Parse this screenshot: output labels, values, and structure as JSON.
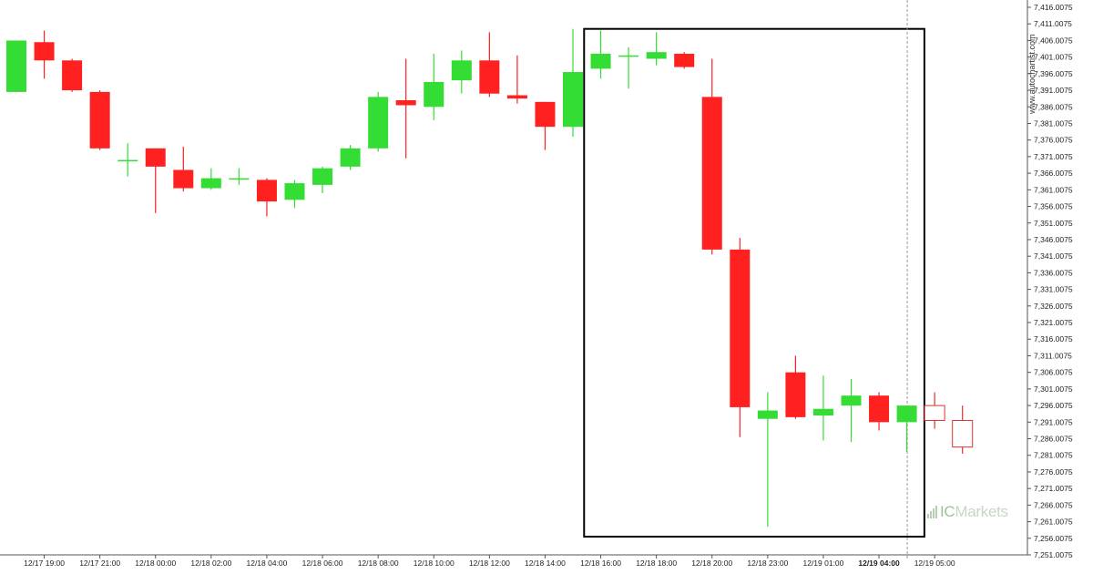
{
  "chart_data": {
    "type": "candlestick",
    "watermark": "www.autochartist.com",
    "brand": {
      "prefix": "IC",
      "name": "Markets"
    },
    "colors": {
      "up": "#33dd33",
      "down": "#ff2020",
      "projection": "#dd3333",
      "axis": "#555555",
      "box": "#000000",
      "grid_tick": "#999999"
    },
    "ylim": [
      7251.0075,
      7416.0075
    ],
    "y_ticks": [
      "7,416.0075",
      "7,411.0075",
      "7,406.0075",
      "7,401.0075",
      "7,396.0075",
      "7,391.0075",
      "7,386.0075",
      "7,381.0075",
      "7,376.0075",
      "7,371.0075",
      "7,366.0075",
      "7,361.0075",
      "7,356.0075",
      "7,351.0075",
      "7,346.0075",
      "7,341.0075",
      "7,336.0075",
      "7,331.0075",
      "7,326.0075",
      "7,321.0075",
      "7,316.0075",
      "7,311.0075",
      "7,306.0075",
      "7,301.0075",
      "7,296.0075",
      "7,291.0075",
      "7,286.0075",
      "7,281.0075",
      "7,276.0075",
      "7,271.0075",
      "7,266.0075",
      "7,261.0075",
      "7,256.0075",
      "7,251.0075"
    ],
    "x_ticks": [
      {
        "label": "12/17 19:00",
        "index": 1
      },
      {
        "label": "12/17 21:00",
        "index": 3
      },
      {
        "label": "12/18 00:00",
        "index": 5
      },
      {
        "label": "12/18 02:00",
        "index": 7
      },
      {
        "label": "12/18 04:00",
        "index": 9
      },
      {
        "label": "12/18 06:00",
        "index": 11
      },
      {
        "label": "12/18 08:00",
        "index": 13
      },
      {
        "label": "12/18 10:00",
        "index": 15
      },
      {
        "label": "12/18 12:00",
        "index": 17
      },
      {
        "label": "12/18 14:00",
        "index": 19
      },
      {
        "label": "12/18 16:00",
        "index": 21
      },
      {
        "label": "12/18 18:00",
        "index": 23
      },
      {
        "label": "12/18 20:00",
        "index": 25
      },
      {
        "label": "12/18 23:00",
        "index": 27
      },
      {
        "label": "12/19 01:00",
        "index": 29
      },
      {
        "label": "12/19 04:00",
        "index": 31,
        "bold": true
      },
      {
        "label": "12/19 05:00",
        "index": 33
      }
    ],
    "candles": [
      {
        "o": 7390.5,
        "h": 7406.0,
        "l": 7390.5,
        "c": 7406.0
      },
      {
        "o": 7405.5,
        "h": 7409.0,
        "l": 7394.5,
        "c": 7400.0
      },
      {
        "o": 7400.0,
        "h": 7400.5,
        "l": 7390.5,
        "c": 7391.0
      },
      {
        "o": 7390.5,
        "h": 7391.0,
        "l": 7373.0,
        "c": 7373.5
      },
      {
        "o": 7370.0,
        "h": 7375.0,
        "l": 7365.0,
        "c": 7370.0
      },
      {
        "o": 7373.5,
        "h": 7373.5,
        "l": 7354.0,
        "c": 7368.0
      },
      {
        "o": 7367.0,
        "h": 7374.0,
        "l": 7360.5,
        "c": 7361.5
      },
      {
        "o": 7361.5,
        "h": 7367.5,
        "l": 7361.0,
        "c": 7364.5
      },
      {
        "o": 7364.5,
        "h": 7367.5,
        "l": 7362.5,
        "c": 7364.5
      },
      {
        "o": 7364.0,
        "h": 7364.5,
        "l": 7353.0,
        "c": 7357.5
      },
      {
        "o": 7358.0,
        "h": 7364.0,
        "l": 7355.5,
        "c": 7363.0
      },
      {
        "o": 7362.5,
        "h": 7368.0,
        "l": 7360.0,
        "c": 7367.5
      },
      {
        "o": 7368.0,
        "h": 7374.5,
        "l": 7367.0,
        "c": 7373.5
      },
      {
        "o": 7373.5,
        "h": 7390.5,
        "l": 7372.5,
        "c": 7389.0
      },
      {
        "o": 7388.0,
        "h": 7400.5,
        "l": 7370.5,
        "c": 7386.5
      },
      {
        "o": 7386.0,
        "h": 7402.0,
        "l": 7382.0,
        "c": 7393.5
      },
      {
        "o": 7394.0,
        "h": 7403.0,
        "l": 7390.0,
        "c": 7400.0
      },
      {
        "o": 7400.0,
        "h": 7408.5,
        "l": 7389.0,
        "c": 7390.0
      },
      {
        "o": 7389.5,
        "h": 7401.5,
        "l": 7387.0,
        "c": 7388.5
      },
      {
        "o": 7387.5,
        "h": 7387.5,
        "l": 7373.0,
        "c": 7380.0
      },
      {
        "o": 7380.0,
        "h": 7409.5,
        "l": 7377.0,
        "c": 7396.5
      },
      {
        "o": 7397.5,
        "h": 7409.0,
        "l": 7394.5,
        "c": 7402.0
      },
      {
        "o": 7401.5,
        "h": 7404.0,
        "l": 7391.5,
        "c": 7401.5
      },
      {
        "o": 7400.5,
        "h": 7408.5,
        "l": 7398.5,
        "c": 7402.5
      },
      {
        "o": 7402.0,
        "h": 7402.5,
        "l": 7397.5,
        "c": 7398.0
      },
      {
        "o": 7389.0,
        "h": 7400.5,
        "l": 7341.5,
        "c": 7343.0
      },
      {
        "o": 7343.0,
        "h": 7346.5,
        "l": 7286.5,
        "c": 7295.5
      },
      {
        "o": 7292.0,
        "h": 7300.0,
        "l": 7259.5,
        "c": 7294.5
      },
      {
        "o": 7306.0,
        "h": 7311.0,
        "l": 7292.0,
        "c": 7292.5
      },
      {
        "o": 7293.0,
        "h": 7305.0,
        "l": 7285.5,
        "c": 7295.0
      },
      {
        "o": 7296.0,
        "h": 7304.0,
        "l": 7285.0,
        "c": 7299.0
      },
      {
        "o": 7299.0,
        "h": 7300.0,
        "l": 7288.5,
        "c": 7291.0
      },
      {
        "o": 7291.0,
        "h": 7296.0,
        "l": 7282.0,
        "c": 7296.0
      },
      {
        "o": 7296.0,
        "h": 7300.0,
        "l": 7289.0,
        "c": 7291.5,
        "projected": true
      },
      {
        "o": 7291.5,
        "h": 7296.0,
        "l": 7281.5,
        "c": 7283.5,
        "projected": true
      }
    ],
    "highlight_box": {
      "from_index": 21,
      "to_index": 33,
      "y_top": 7409.5,
      "y_bottom": 7256.5
    },
    "current_time_index": 32
  }
}
